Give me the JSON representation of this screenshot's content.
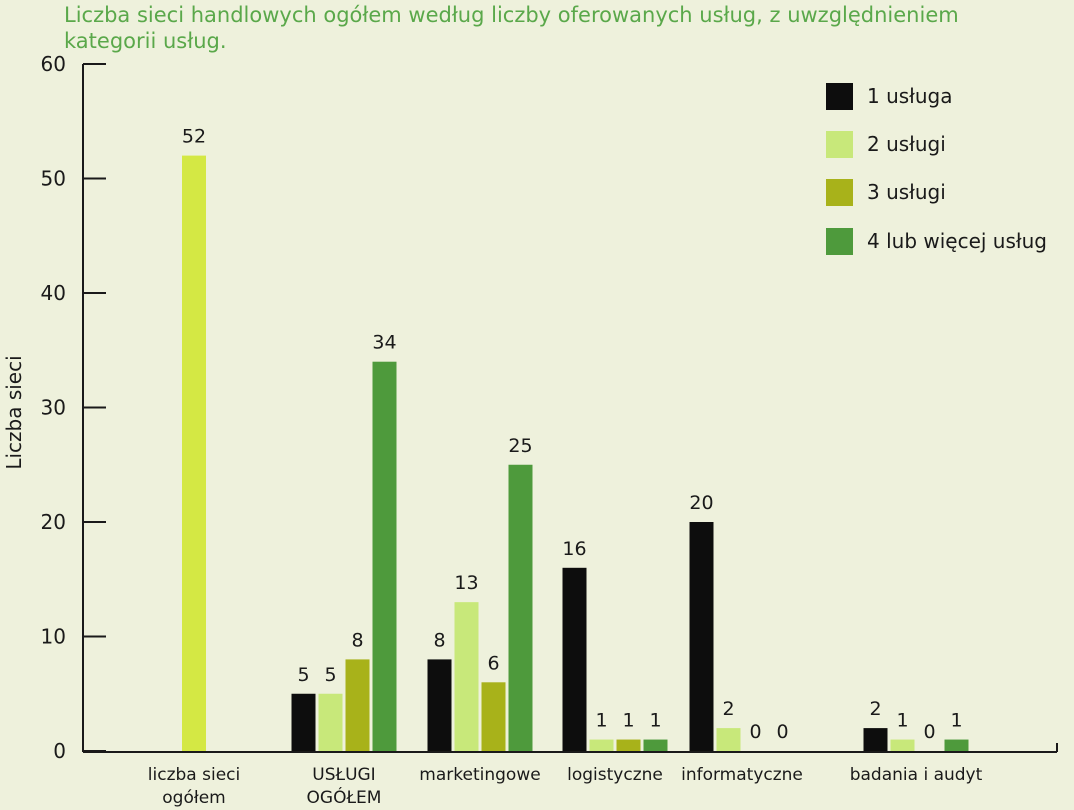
{
  "chart_data": {
    "type": "bar",
    "title": "Liczba sieci handlowych ogółem według liczby oferowanych usług, z uwzględnieniem\n  kategorii usług.",
    "ylabel": "Liczba sieci",
    "xlabel": "",
    "ylim": [
      0,
      60
    ],
    "yticks": [
      0,
      10,
      20,
      30,
      40,
      50,
      60
    ],
    "legend_position": "top-right",
    "colors": {
      "1 usługa": "#0d0d0d",
      "2 usługi": "#c8e87a",
      "3 usługi": "#a8b21a",
      "4 lub więcej usług": "#4e9a3c",
      "liczba": "#d4e844",
      "title": "#5aa84a",
      "background": "#eef1dc"
    },
    "categories": [
      {
        "label": "liczba sieci\nogółem",
        "bars": [
          {
            "series": "liczba",
            "value": 52
          }
        ]
      },
      {
        "label": "USŁUGI\nOGÓŁEM",
        "bars": [
          {
            "series": "1 usługa",
            "value": 5
          },
          {
            "series": "2 usługi",
            "value": 5
          },
          {
            "series": "3 usługi",
            "value": 8
          },
          {
            "series": "4 lub więcej usług",
            "value": 34
          }
        ]
      },
      {
        "label": "marketingowe",
        "bars": [
          {
            "series": "1 usługa",
            "value": 8
          },
          {
            "series": "2 usługi",
            "value": 13
          },
          {
            "series": "3 usługi",
            "value": 6
          },
          {
            "series": "4 lub więcej usług",
            "value": 25
          }
        ]
      },
      {
        "label": "logistyczne",
        "bars": [
          {
            "series": "1 usługa",
            "value": 16
          },
          {
            "series": "2 usługi",
            "value": 1
          },
          {
            "series": "3 usługi",
            "value": 1
          },
          {
            "series": "4 lub więcej usług",
            "value": 1
          }
        ]
      },
      {
        "label": "informatyczne",
        "bars": [
          {
            "series": "1 usługa",
            "value": 20
          },
          {
            "series": "2 usługi",
            "value": 2
          },
          {
            "series": "3 usługi",
            "value": 0
          },
          {
            "series": "4 lub więcej usług",
            "value": 0
          }
        ]
      },
      {
        "label": "badania i audyt",
        "bars": [
          {
            "series": "1 usługa",
            "value": 2
          },
          {
            "series": "2 usługi",
            "value": 1
          },
          {
            "series": "3 usługi",
            "value": 0
          },
          {
            "series": "4 lub więcej usług",
            "value": 1
          }
        ]
      }
    ],
    "legend": [
      "1 usługa",
      "2 usługi",
      "3 usługi",
      "4 lub więcej usług"
    ]
  }
}
